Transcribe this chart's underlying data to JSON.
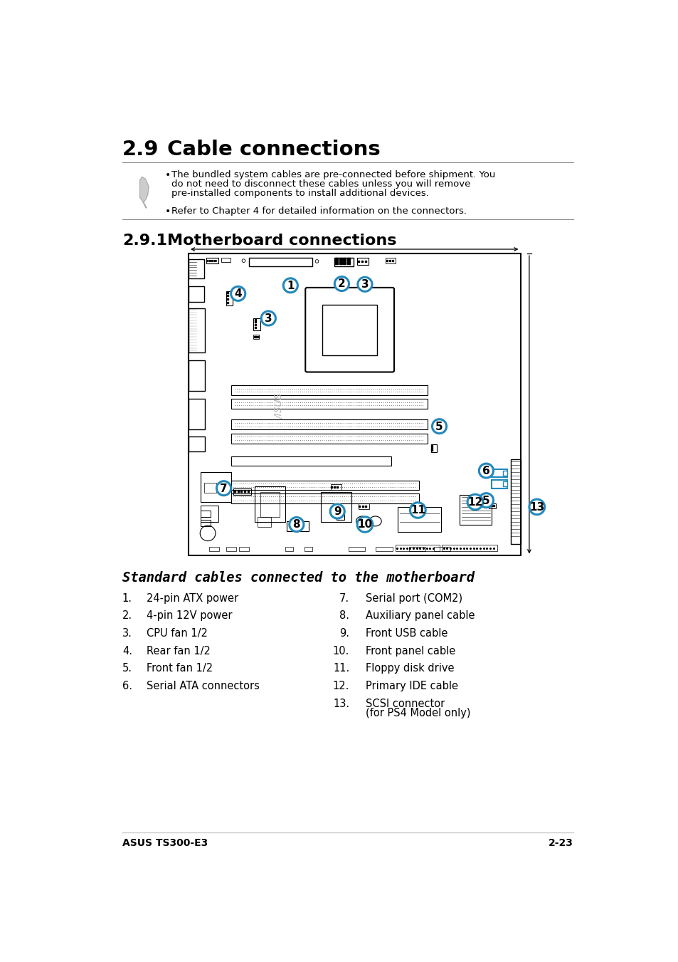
{
  "title_section": "2.9",
  "title_text": "Cable connections",
  "subtitle_section": "2.9.1",
  "subtitle_text": "Motherboard connections",
  "note_text1_line1": "The bundled system cables are pre-connected before shipment. You",
  "note_text1_line2": "do not need to disconnect these cables unless you will remove",
  "note_text1_line3": "pre-installed components to install additional devices.",
  "note_text2": "Refer to Chapter 4 for detailed information on the connectors.",
  "section_label": "Standard cables connected to the motherboard",
  "list_left": [
    [
      "1.",
      "24-pin ATX power"
    ],
    [
      "2.",
      "4-pin 12V power"
    ],
    [
      "3.",
      "CPU fan 1/2"
    ],
    [
      "4.",
      "Rear fan 1/2"
    ],
    [
      "5.",
      "Front fan 1/2"
    ],
    [
      "6.",
      "Serial ATA connectors"
    ]
  ],
  "list_right": [
    [
      "7.",
      "Serial port (COM2)"
    ],
    [
      "8.",
      "Auxiliary panel cable"
    ],
    [
      "9.",
      "Front USB cable"
    ],
    [
      "10.",
      "Front panel cable"
    ],
    [
      "11.",
      "Floppy disk drive"
    ],
    [
      "12.",
      "Primary IDE cable"
    ],
    [
      "13.",
      "SCSI connector",
      "(for PS4 Model only)"
    ]
  ],
  "footer_left": "ASUS TS300-E3",
  "footer_right": "2-23",
  "bg_color": "#ffffff",
  "text_color": "#000000",
  "accent_color": "#2288bb",
  "border_color": "#000000",
  "gray_color": "#888888",
  "circle_bg": "#ffffff",
  "circle_border": "#2288bb",
  "circle_text": "#000000"
}
